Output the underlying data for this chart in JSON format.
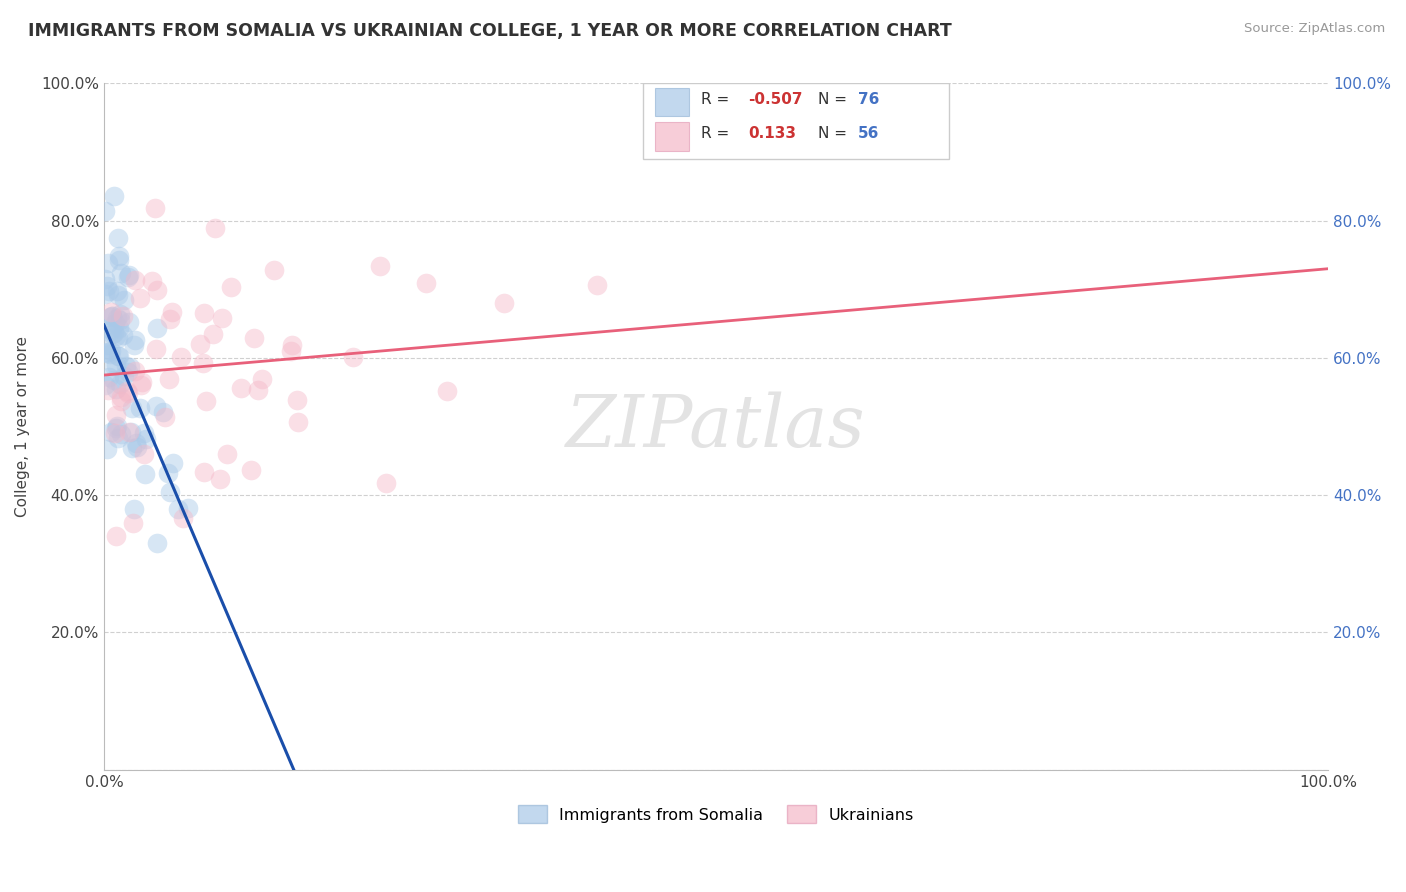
{
  "title": "IMMIGRANTS FROM SOMALIA VS UKRAINIAN COLLEGE, 1 YEAR OR MORE CORRELATION CHART",
  "source": "Source: ZipAtlas.com",
  "ylabel": "College, 1 year or more",
  "xlim": [
    0.0,
    1.0
  ],
  "ylim": [
    0.0,
    1.0
  ],
  "somalia_color": "#a8c8e8",
  "ukraine_color": "#f4b8c8",
  "somalia_line_color": "#1a4eaa",
  "ukraine_line_color": "#e8607a",
  "watermark": "ZIPatlas",
  "background_color": "#ffffff",
  "grid_color": "#d0d0d0",
  "somalia_R": "-0.507",
  "somalia_N": "76",
  "ukraine_R": "0.133",
  "ukraine_N": "56",
  "legend_label_somalia": "Immigrants from Somalia",
  "legend_label_ukraine": "Ukrainians",
  "somalia_line_x0": 0.0,
  "somalia_line_y0": 0.648,
  "somalia_line_x1": 0.155,
  "somalia_line_y1": 0.0,
  "ukraine_line_x0": 0.0,
  "ukraine_line_y0": 0.575,
  "ukraine_line_x1": 1.0,
  "ukraine_line_y1": 0.73
}
